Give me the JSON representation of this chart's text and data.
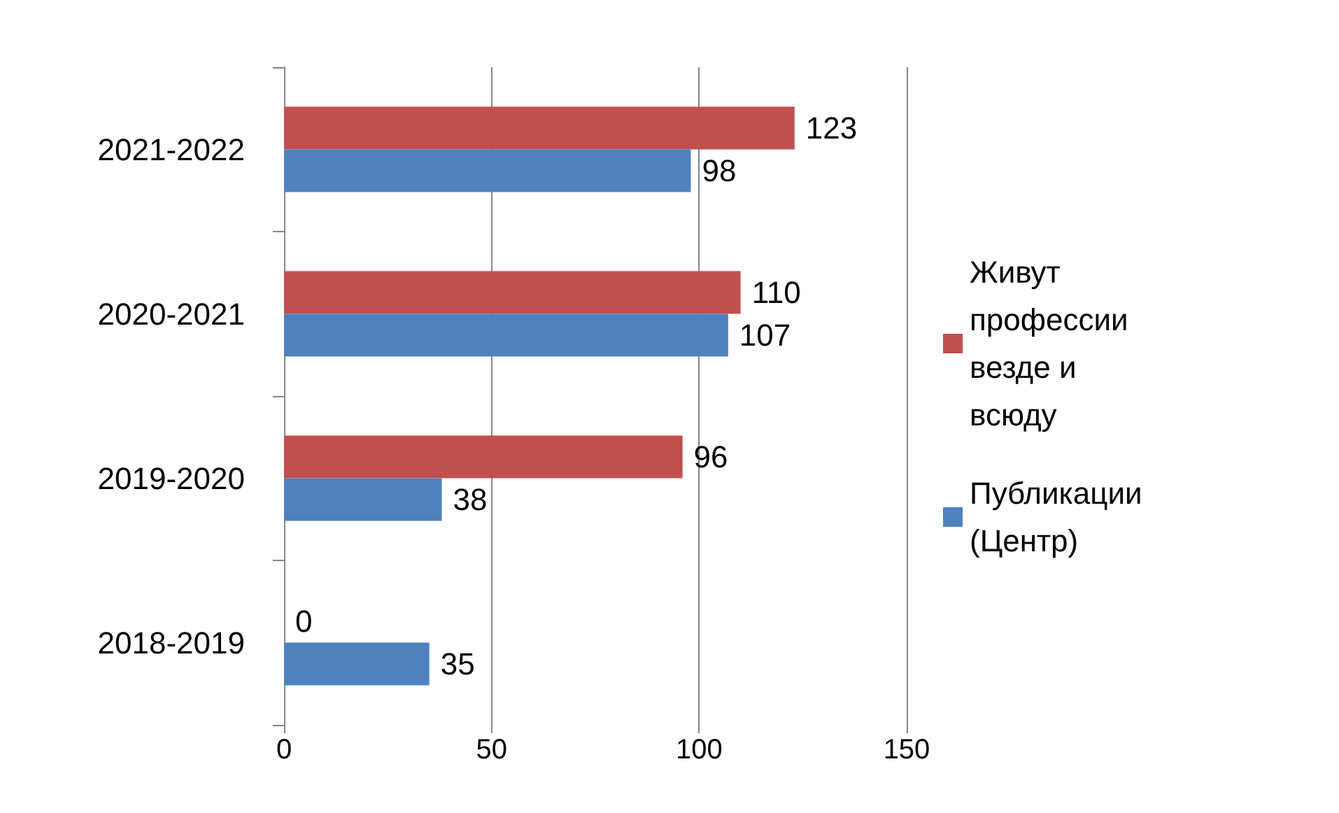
{
  "chart_data": {
    "type": "bar",
    "orientation": "horizontal",
    "categories": [
      "2021-2022",
      "2020-2021",
      "2019-2020",
      "2018-2019"
    ],
    "series": [
      {
        "name": "Живут профессии везде и всюду",
        "color": "#c0504d",
        "values": [
          123,
          110,
          96,
          0
        ]
      },
      {
        "name": "Публикации (Центр)",
        "color": "#4f81bd",
        "values": [
          98,
          107,
          38,
          35
        ]
      }
    ],
    "xlim": [
      0,
      150
    ],
    "xticks": [
      0,
      50,
      100,
      150
    ],
    "grid": "x",
    "legend": "right",
    "data_labels": true
  }
}
